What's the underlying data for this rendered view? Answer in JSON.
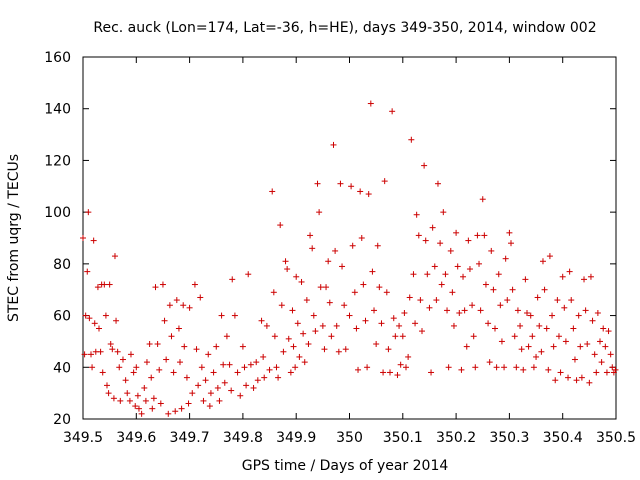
{
  "chart_data": {
    "type": "scatter",
    "title": "Rec. auck (Lon=174, Lat=-36, h=HE), days 349-350, 2014, window 002",
    "xlabel": "GPS time / Days of year 2014",
    "ylabel": "STEC from uqrg / TECUs",
    "xlim": [
      349.5,
      350.5
    ],
    "ylim": [
      20,
      160
    ],
    "xticks": [
      349.5,
      349.6,
      349.7,
      349.8,
      349.9,
      350.0,
      350.1,
      350.2,
      350.3,
      350.4,
      350.5
    ],
    "xtick_labels": [
      "349.5",
      "349.6",
      "349.7",
      "349.8",
      "349.9",
      "350",
      "350.1",
      "350.2",
      "350.3",
      "350.4",
      "350.5"
    ],
    "yticks": [
      20,
      40,
      60,
      80,
      100,
      120,
      140,
      160
    ],
    "ytick_labels": [
      "20",
      "40",
      "60",
      "80",
      "100",
      "120",
      "140",
      "160"
    ],
    "marker": "+",
    "color": "#cc0000",
    "series": [
      {
        "name": "STEC",
        "points": [
          [
            349.5,
            90
          ],
          [
            349.503,
            45
          ],
          [
            349.505,
            60
          ],
          [
            349.508,
            77
          ],
          [
            349.51,
            100
          ],
          [
            349.512,
            59
          ],
          [
            349.515,
            45
          ],
          [
            349.517,
            40
          ],
          [
            349.52,
            89
          ],
          [
            349.522,
            57
          ],
          [
            349.524,
            46
          ],
          [
            349.528,
            71
          ],
          [
            349.53,
            55
          ],
          [
            349.533,
            46
          ],
          [
            349.535,
            72
          ],
          [
            349.537,
            38
          ],
          [
            349.54,
            72
          ],
          [
            349.543,
            60
          ],
          [
            349.545,
            33
          ],
          [
            349.548,
            30
          ],
          [
            349.55,
            72
          ],
          [
            349.552,
            49
          ],
          [
            349.555,
            47
          ],
          [
            349.558,
            28
          ],
          [
            349.56,
            83
          ],
          [
            349.562,
            58
          ],
          [
            349.565,
            46
          ],
          [
            349.568,
            40
          ],
          [
            349.57,
            27
          ],
          [
            349.575,
            43
          ],
          [
            349.58,
            35
          ],
          [
            349.583,
            30
          ],
          [
            349.588,
            27
          ],
          [
            349.59,
            45
          ],
          [
            349.595,
            38
          ],
          [
            349.598,
            25
          ],
          [
            349.6,
            40
          ],
          [
            349.603,
            29
          ],
          [
            349.605,
            24
          ],
          [
            349.61,
            22
          ],
          [
            349.615,
            32
          ],
          [
            349.618,
            27
          ],
          [
            349.62,
            42
          ],
          [
            349.625,
            49
          ],
          [
            349.628,
            36
          ],
          [
            349.63,
            24
          ],
          [
            349.633,
            28
          ],
          [
            349.636,
            71
          ],
          [
            349.64,
            49
          ],
          [
            349.643,
            39
          ],
          [
            349.646,
            26
          ],
          [
            349.65,
            72
          ],
          [
            349.653,
            58
          ],
          [
            349.656,
            43
          ],
          [
            349.66,
            22
          ],
          [
            349.663,
            64
          ],
          [
            349.666,
            52
          ],
          [
            349.67,
            38
          ],
          [
            349.673,
            23
          ],
          [
            349.676,
            66
          ],
          [
            349.68,
            55
          ],
          [
            349.682,
            42
          ],
          [
            349.685,
            24
          ],
          [
            349.688,
            64
          ],
          [
            349.69,
            48
          ],
          [
            349.695,
            36
          ],
          [
            349.698,
            26
          ],
          [
            349.7,
            63
          ],
          [
            349.705,
            30
          ],
          [
            349.71,
            72
          ],
          [
            349.713,
            47
          ],
          [
            349.716,
            33
          ],
          [
            349.72,
            67
          ],
          [
            349.723,
            40
          ],
          [
            349.726,
            27
          ],
          [
            349.73,
            35
          ],
          [
            349.735,
            45
          ],
          [
            349.738,
            25
          ],
          [
            349.74,
            30
          ],
          [
            349.745,
            38
          ],
          [
            349.75,
            48
          ],
          [
            349.753,
            32
          ],
          [
            349.756,
            27
          ],
          [
            349.76,
            60
          ],
          [
            349.763,
            41
          ],
          [
            349.766,
            34
          ],
          [
            349.77,
            52
          ],
          [
            349.775,
            41
          ],
          [
            349.778,
            31
          ],
          [
            349.78,
            74
          ],
          [
            349.785,
            60
          ],
          [
            349.79,
            38
          ],
          [
            349.795,
            29
          ],
          [
            349.8,
            48
          ],
          [
            349.803,
            40
          ],
          [
            349.806,
            33
          ],
          [
            349.81,
            76
          ],
          [
            349.815,
            41
          ],
          [
            349.82,
            32
          ],
          [
            349.825,
            42
          ],
          [
            349.828,
            35
          ],
          [
            349.835,
            58
          ],
          [
            349.838,
            44
          ],
          [
            349.84,
            36
          ],
          [
            349.845,
            56
          ],
          [
            349.85,
            39
          ],
          [
            349.855,
            108
          ],
          [
            349.858,
            69
          ],
          [
            349.86,
            52
          ],
          [
            349.863,
            40
          ],
          [
            349.866,
            36
          ],
          [
            349.87,
            95
          ],
          [
            349.873,
            64
          ],
          [
            349.876,
            46
          ],
          [
            349.88,
            81
          ],
          [
            349.883,
            78
          ],
          [
            349.886,
            51
          ],
          [
            349.89,
            38
          ],
          [
            349.893,
            62
          ],
          [
            349.895,
            48
          ],
          [
            349.898,
            40
          ],
          [
            349.9,
            75
          ],
          [
            349.903,
            57
          ],
          [
            349.906,
            44
          ],
          [
            349.91,
            73
          ],
          [
            349.913,
            53
          ],
          [
            349.916,
            42
          ],
          [
            349.92,
            66
          ],
          [
            349.923,
            49
          ],
          [
            349.926,
            91
          ],
          [
            349.93,
            86
          ],
          [
            349.933,
            60
          ],
          [
            349.936,
            54
          ],
          [
            349.94,
            111
          ],
          [
            349.943,
            100
          ],
          [
            349.946,
            71
          ],
          [
            349.95,
            56
          ],
          [
            349.953,
            47
          ],
          [
            349.956,
            71
          ],
          [
            349.96,
            81
          ],
          [
            349.963,
            65
          ],
          [
            349.966,
            52
          ],
          [
            349.97,
            126
          ],
          [
            349.973,
            85
          ],
          [
            349.976,
            56
          ],
          [
            349.98,
            46
          ],
          [
            349.983,
            111
          ],
          [
            349.986,
            79
          ],
          [
            349.99,
            64
          ],
          [
            349.993,
            47
          ],
          [
            350.0,
            60
          ],
          [
            350.003,
            110
          ],
          [
            350.006,
            87
          ],
          [
            350.01,
            69
          ],
          [
            350.013,
            55
          ],
          [
            350.016,
            39
          ],
          [
            350.02,
            108
          ],
          [
            350.023,
            90
          ],
          [
            350.026,
            72
          ],
          [
            350.03,
            58
          ],
          [
            350.033,
            40
          ],
          [
            350.036,
            107
          ],
          [
            350.04,
            142
          ],
          [
            350.043,
            77
          ],
          [
            350.046,
            62
          ],
          [
            350.05,
            49
          ],
          [
            350.053,
            87
          ],
          [
            350.056,
            71
          ],
          [
            350.06,
            57
          ],
          [
            350.063,
            38
          ],
          [
            350.066,
            112
          ],
          [
            350.07,
            69
          ],
          [
            350.073,
            47
          ],
          [
            350.076,
            38
          ],
          [
            350.08,
            139
          ],
          [
            350.083,
            59
          ],
          [
            350.086,
            52
          ],
          [
            350.09,
            37
          ],
          [
            350.093,
            56
          ],
          [
            350.096,
            41
          ],
          [
            350.1,
            52
          ],
          [
            350.103,
            61
          ],
          [
            350.106,
            40
          ],
          [
            350.11,
            44
          ],
          [
            350.113,
            67
          ],
          [
            350.116,
            128
          ],
          [
            350.12,
            76
          ],
          [
            350.123,
            57
          ],
          [
            350.126,
            99
          ],
          [
            350.13,
            91
          ],
          [
            350.133,
            66
          ],
          [
            350.136,
            54
          ],
          [
            350.14,
            118
          ],
          [
            350.143,
            89
          ],
          [
            350.146,
            76
          ],
          [
            350.15,
            63
          ],
          [
            350.153,
            38
          ],
          [
            350.156,
            94
          ],
          [
            350.16,
            79
          ],
          [
            350.163,
            66
          ],
          [
            350.166,
            111
          ],
          [
            350.17,
            88
          ],
          [
            350.173,
            72
          ],
          [
            350.176,
            100
          ],
          [
            350.18,
            76
          ],
          [
            350.183,
            62
          ],
          [
            350.186,
            40
          ],
          [
            350.19,
            85
          ],
          [
            350.193,
            69
          ],
          [
            350.196,
            56
          ],
          [
            350.2,
            92
          ],
          [
            350.203,
            79
          ],
          [
            350.206,
            61
          ],
          [
            350.21,
            39
          ],
          [
            350.213,
            75
          ],
          [
            350.216,
            62
          ],
          [
            350.22,
            48
          ],
          [
            350.223,
            89
          ],
          [
            350.226,
            78
          ],
          [
            350.23,
            64
          ],
          [
            350.233,
            52
          ],
          [
            350.236,
            40
          ],
          [
            350.24,
            91
          ],
          [
            350.243,
            80
          ],
          [
            350.246,
            62
          ],
          [
            350.25,
            105
          ],
          [
            350.253,
            91
          ],
          [
            350.256,
            72
          ],
          [
            350.26,
            57
          ],
          [
            350.263,
            42
          ],
          [
            350.266,
            85
          ],
          [
            350.27,
            70
          ],
          [
            350.273,
            55
          ],
          [
            350.276,
            40
          ],
          [
            350.28,
            76
          ],
          [
            350.283,
            64
          ],
          [
            350.286,
            50
          ],
          [
            350.29,
            40
          ],
          [
            350.293,
            82
          ],
          [
            350.296,
            66
          ],
          [
            350.3,
            92
          ],
          [
            350.303,
            88
          ],
          [
            350.306,
            70
          ],
          [
            350.31,
            52
          ],
          [
            350.313,
            40
          ],
          [
            350.316,
            62
          ],
          [
            350.32,
            56
          ],
          [
            350.323,
            47
          ],
          [
            350.326,
            39
          ],
          [
            350.33,
            74
          ],
          [
            350.333,
            61
          ],
          [
            350.336,
            48
          ],
          [
            350.34,
            60
          ],
          [
            350.343,
            52
          ],
          [
            350.346,
            40
          ],
          [
            350.35,
            44
          ],
          [
            350.353,
            67
          ],
          [
            350.356,
            56
          ],
          [
            350.36,
            46
          ],
          [
            350.363,
            81
          ],
          [
            350.366,
            70
          ],
          [
            350.37,
            55
          ],
          [
            350.373,
            39
          ],
          [
            350.376,
            83
          ],
          [
            350.38,
            60
          ],
          [
            350.383,
            48
          ],
          [
            350.386,
            35
          ],
          [
            350.39,
            66
          ],
          [
            350.393,
            52
          ],
          [
            350.396,
            38
          ],
          [
            350.4,
            75
          ],
          [
            350.403,
            63
          ],
          [
            350.406,
            50
          ],
          [
            350.41,
            36
          ],
          [
            350.413,
            77
          ],
          [
            350.416,
            66
          ],
          [
            350.42,
            55
          ],
          [
            350.423,
            43
          ],
          [
            350.426,
            35
          ],
          [
            350.43,
            60
          ],
          [
            350.433,
            48
          ],
          [
            350.436,
            36
          ],
          [
            350.44,
            74
          ],
          [
            350.443,
            62
          ],
          [
            350.446,
            49
          ],
          [
            350.45,
            34
          ],
          [
            350.453,
            75
          ],
          [
            350.456,
            58
          ],
          [
            350.46,
            45
          ],
          [
            350.463,
            38
          ],
          [
            350.466,
            61
          ],
          [
            350.47,
            50
          ],
          [
            350.473,
            42
          ],
          [
            350.476,
            55
          ],
          [
            350.48,
            48
          ],
          [
            350.483,
            38
          ],
          [
            350.486,
            54
          ],
          [
            350.49,
            45
          ],
          [
            350.493,
            40
          ],
          [
            350.496,
            38
          ],
          [
            350.499,
            39
          ]
        ]
      }
    ]
  }
}
